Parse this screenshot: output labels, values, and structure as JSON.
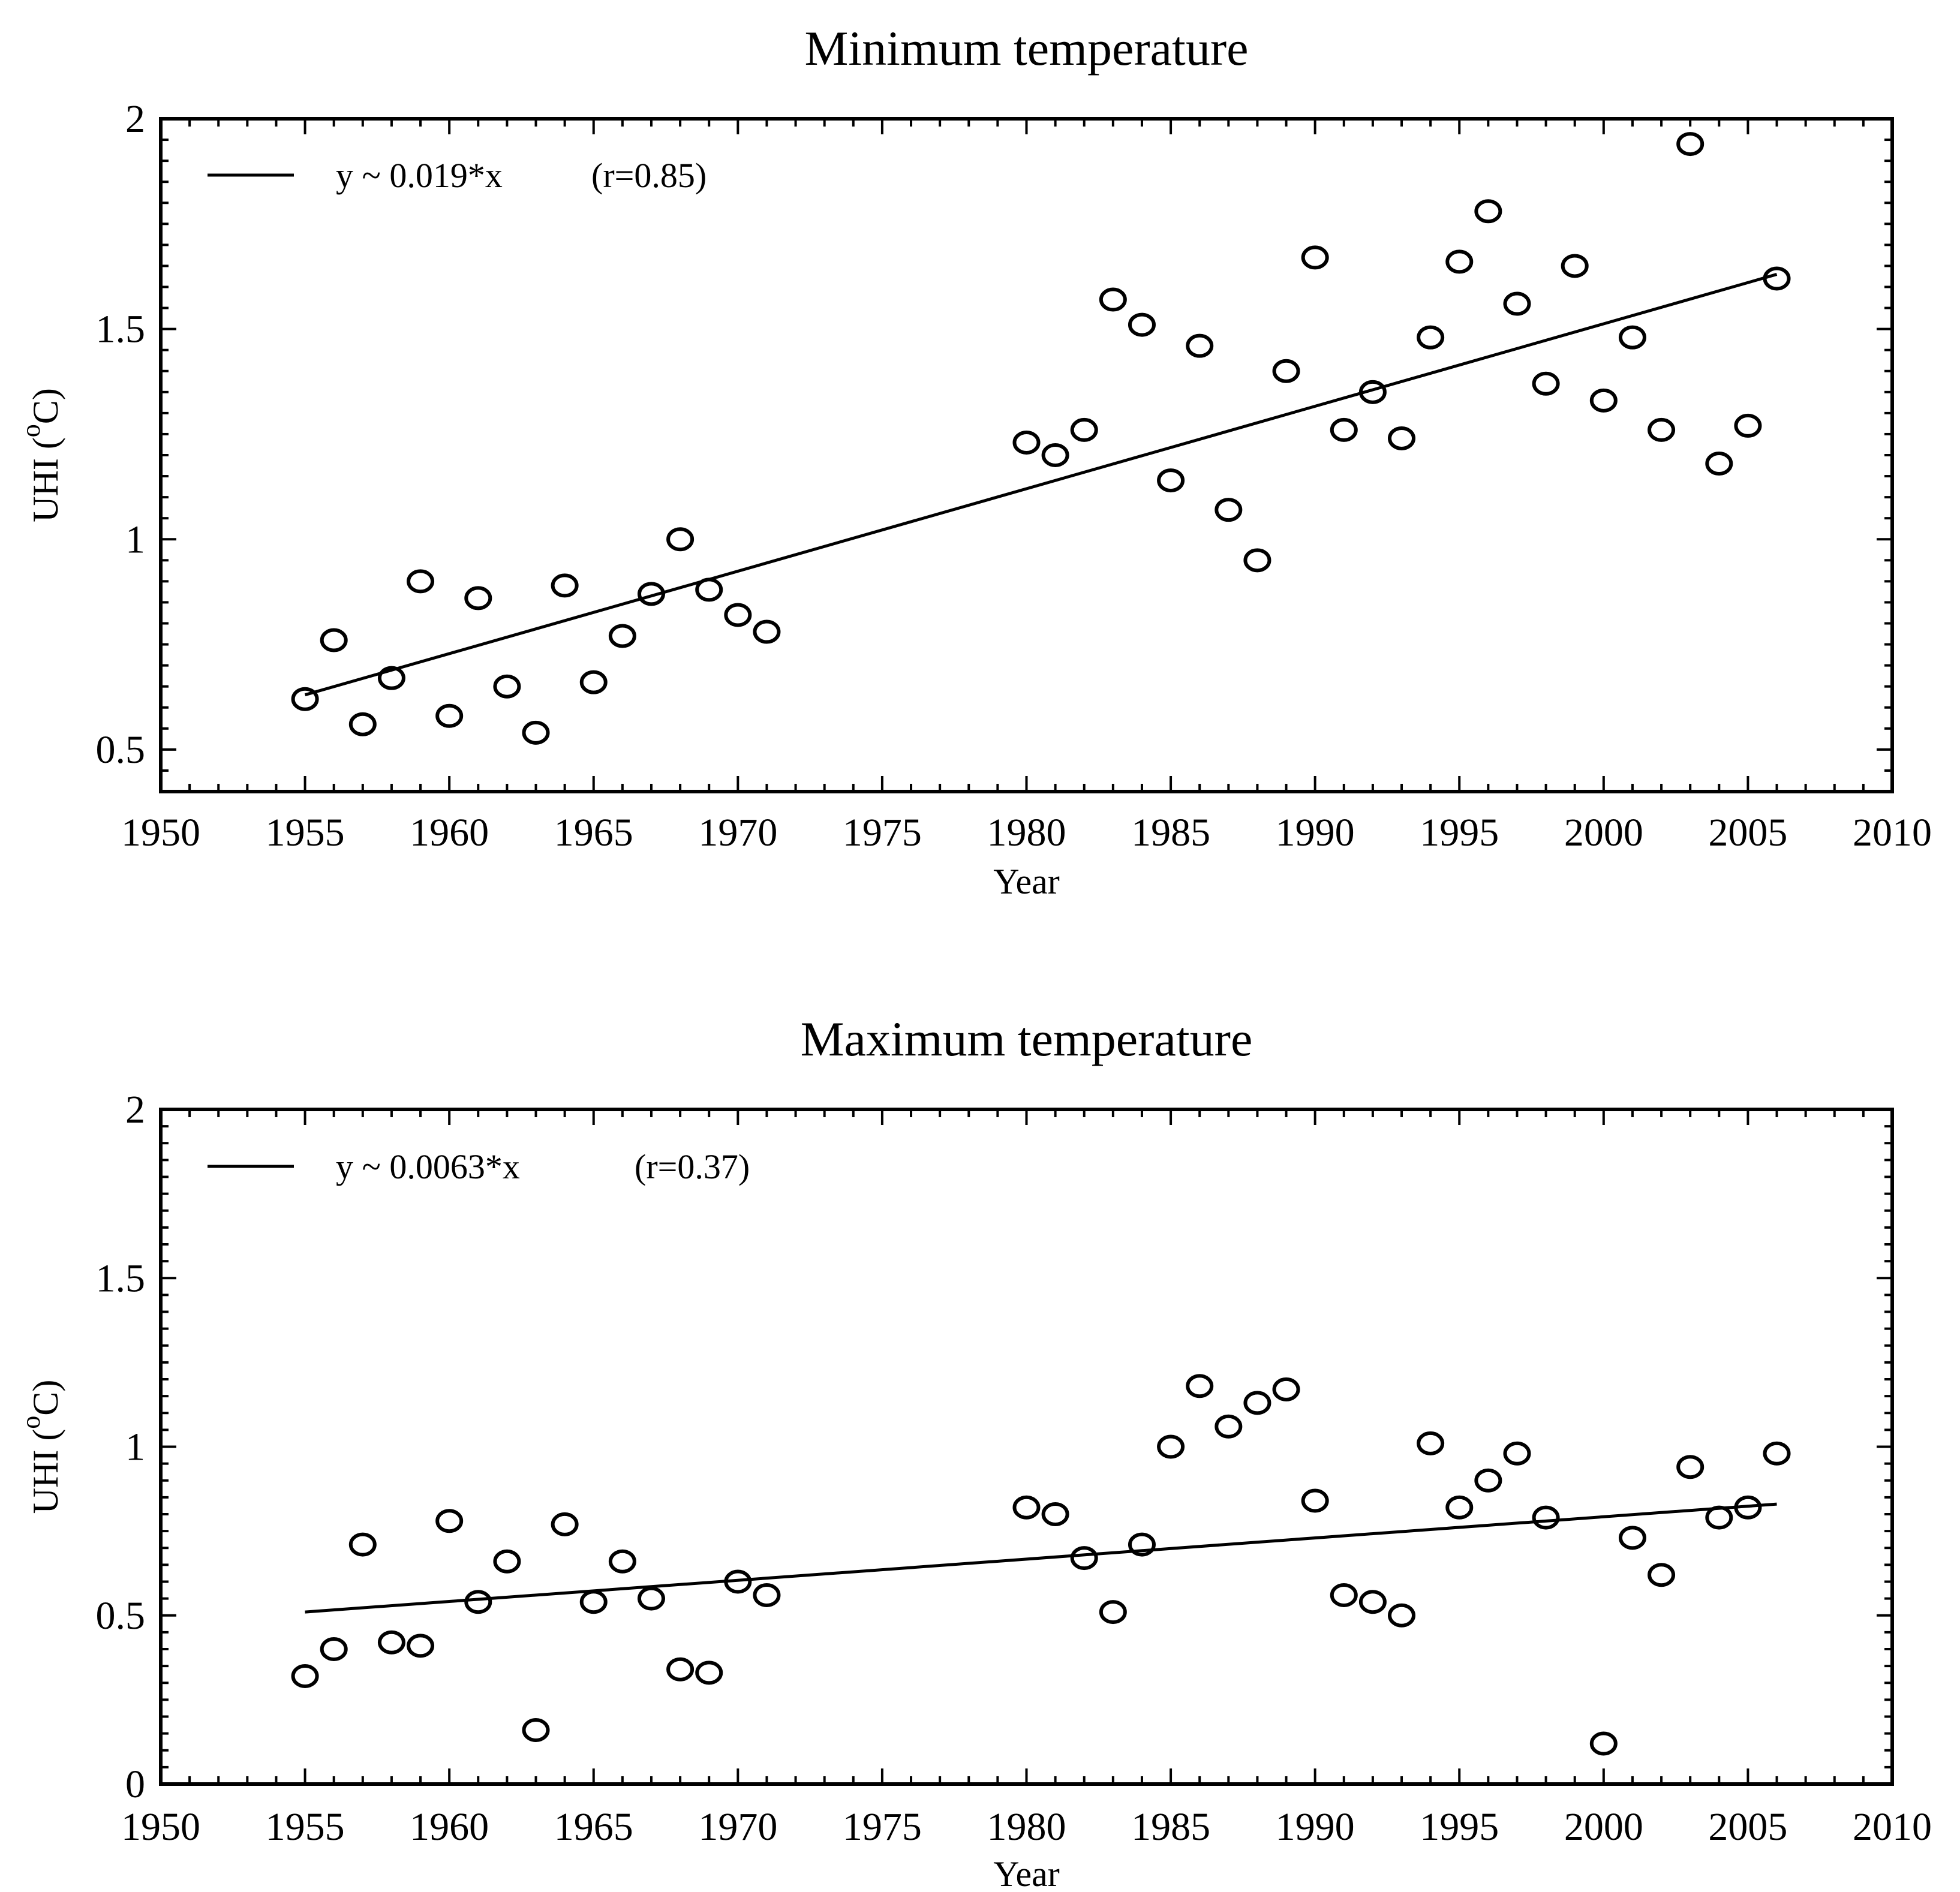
{
  "chart_data": [
    {
      "type": "scatter",
      "title": "Minimum temperature",
      "xlabel": "Year",
      "ylabel": "UHI (°C)",
      "ylabel_parts": {
        "main": "UHI  (",
        "sup": "o",
        "unit": "C)"
      },
      "xlim": [
        1950,
        2010
      ],
      "ylim": [
        0.4,
        2
      ],
      "xticks": [
        1950,
        1955,
        1960,
        1965,
        1970,
        1975,
        1980,
        1985,
        1990,
        1995,
        2000,
        2005,
        2010
      ],
      "yticks": [
        0.5,
        1,
        1.5,
        2
      ],
      "xtick_labels": [
        "1950",
        "1955",
        "1960",
        "1965",
        "1970",
        "1975",
        "1980",
        "1985",
        "1990",
        "1995",
        "2000",
        "2005",
        "2010"
      ],
      "ytick_labels": [
        "0.5",
        "1",
        "1.5",
        "2"
      ],
      "legend": {
        "equation": "y ~ 0.019*x",
        "r": "(r=0.85)"
      },
      "trend": {
        "x": [
          1955,
          2006
        ],
        "y": [
          0.63,
          1.63
        ]
      },
      "points": {
        "x": [
          1955,
          1956,
          1957,
          1958,
          1959,
          1960,
          1961,
          1962,
          1963,
          1964,
          1965,
          1966,
          1967,
          1968,
          1969,
          1970,
          1971,
          1980,
          1981,
          1982,
          1983,
          1984,
          1985,
          1986,
          1987,
          1988,
          1989,
          1990,
          1991,
          1992,
          1993,
          1994,
          1995,
          1996,
          1997,
          1998,
          1999,
          2000,
          2001,
          2002,
          2003,
          2004,
          2005,
          2006
        ],
        "y": [
          0.62,
          0.76,
          0.56,
          0.67,
          0.9,
          0.58,
          0.86,
          0.65,
          0.54,
          0.89,
          0.66,
          0.77,
          0.87,
          1.0,
          0.88,
          0.82,
          0.78,
          1.23,
          1.2,
          1.26,
          1.57,
          1.51,
          1.14,
          1.46,
          1.07,
          0.95,
          1.4,
          1.67,
          1.26,
          1.35,
          1.24,
          1.48,
          1.66,
          1.78,
          1.56,
          1.37,
          1.65,
          1.33,
          1.48,
          1.26,
          1.94,
          1.18,
          1.27,
          1.62
        ]
      }
    },
    {
      "type": "scatter",
      "title": "Maximum temperature",
      "xlabel": "Year",
      "ylabel": "UHI (°C)",
      "ylabel_parts": {
        "main": "UHI  (",
        "sup": "o",
        "unit": "C)"
      },
      "xlim": [
        1950,
        2010
      ],
      "ylim": [
        0,
        2
      ],
      "xticks": [
        1950,
        1955,
        1960,
        1965,
        1970,
        1975,
        1980,
        1985,
        1990,
        1995,
        2000,
        2005,
        2010
      ],
      "yticks": [
        0,
        0.5,
        1,
        1.5,
        2
      ],
      "xtick_labels": [
        "1950",
        "1955",
        "1960",
        "1965",
        "1970",
        "1975",
        "1980",
        "1985",
        "1990",
        "1995",
        "2000",
        "2005",
        "2010"
      ],
      "ytick_labels": [
        "0",
        "0.5",
        "1",
        "1.5",
        "2"
      ],
      "legend": {
        "equation": "y ~ 0.0063*x",
        "r": "(r=0.37)"
      },
      "trend": {
        "x": [
          1955,
          2006
        ],
        "y": [
          0.51,
          0.83
        ]
      },
      "points": {
        "x": [
          1955,
          1956,
          1957,
          1958,
          1959,
          1960,
          1961,
          1962,
          1963,
          1964,
          1965,
          1966,
          1967,
          1968,
          1969,
          1970,
          1971,
          1980,
          1981,
          1982,
          1983,
          1984,
          1985,
          1986,
          1987,
          1988,
          1989,
          1990,
          1991,
          1992,
          1993,
          1994,
          1995,
          1996,
          1997,
          1998,
          2000,
          2001,
          2002,
          2003,
          2004,
          2005,
          2006
        ],
        "y": [
          0.32,
          0.4,
          0.71,
          0.42,
          0.41,
          0.78,
          0.54,
          0.66,
          0.16,
          0.77,
          0.54,
          0.66,
          0.55,
          0.34,
          0.33,
          0.6,
          0.56,
          0.82,
          0.8,
          0.67,
          0.51,
          0.71,
          1.0,
          1.18,
          1.06,
          1.13,
          1.17,
          0.84,
          0.56,
          0.54,
          0.5,
          1.01,
          0.82,
          0.9,
          0.98,
          0.79,
          0.12,
          0.73,
          0.62,
          0.94,
          0.79,
          0.82,
          0.98
        ]
      }
    }
  ]
}
